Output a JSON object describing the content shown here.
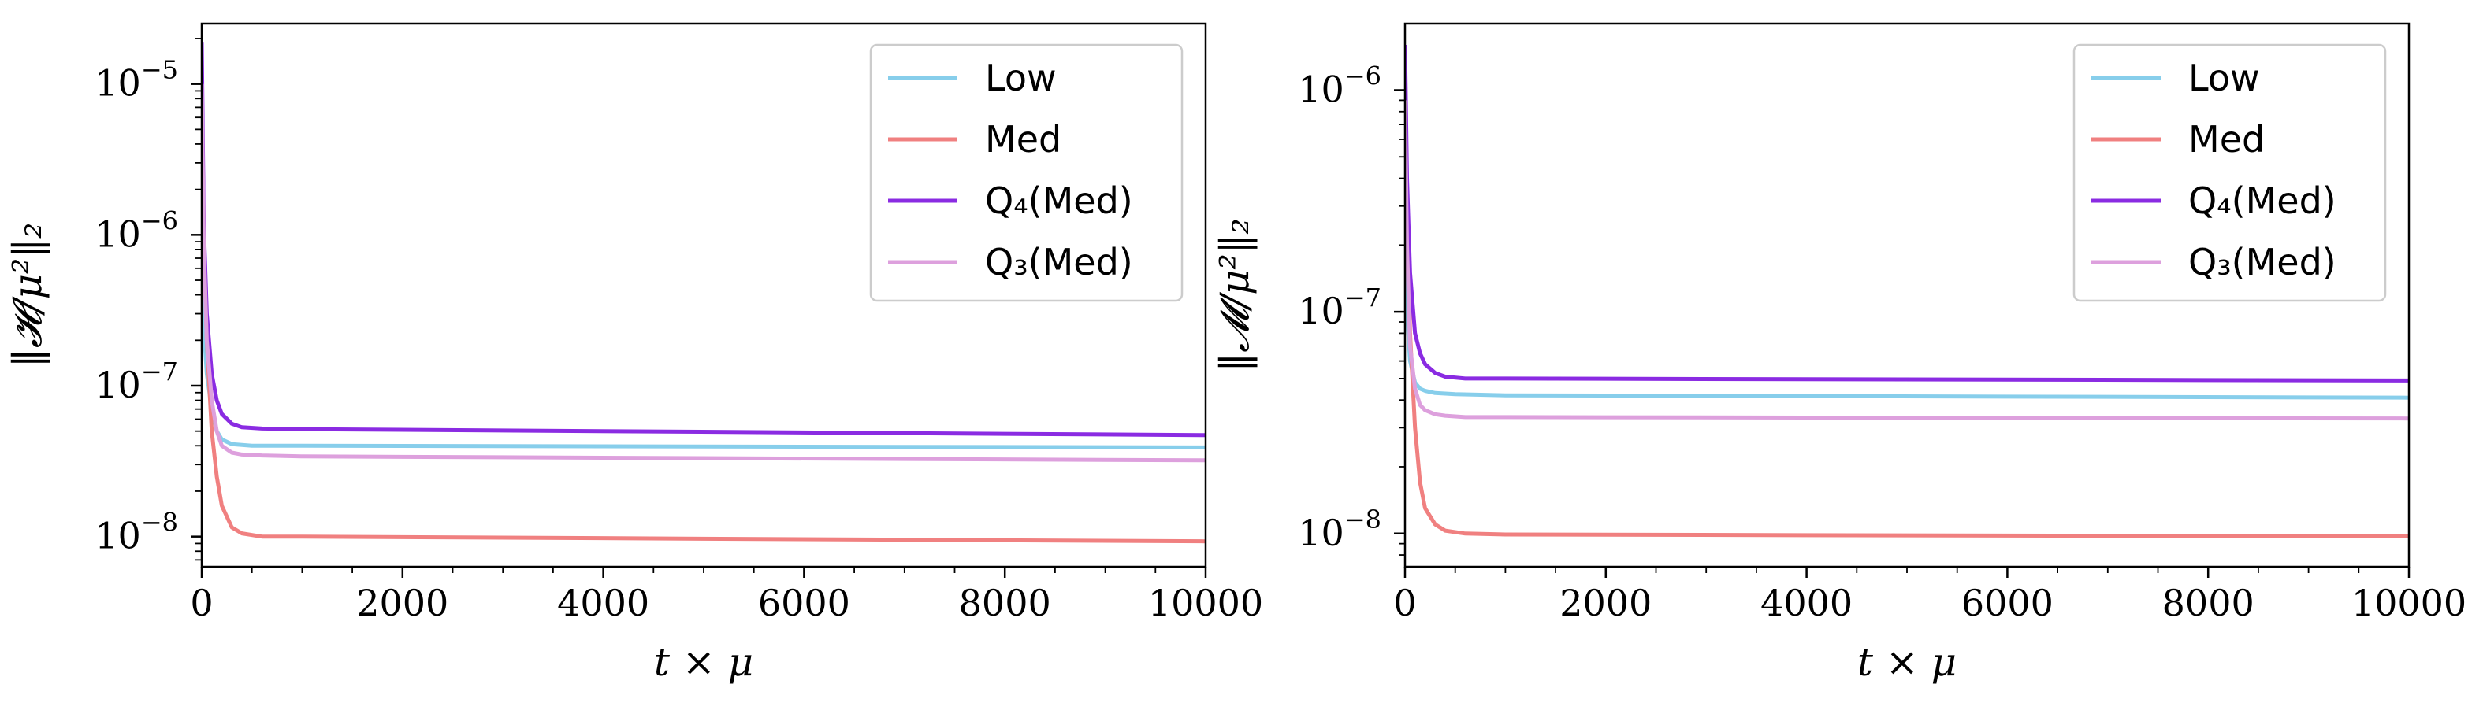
{
  "chart_data": [
    {
      "type": "line",
      "panel": "left",
      "title": "",
      "xlabel": "t × μ",
      "ylabel": "‖𝓗/μ²‖₂",
      "xlim": [
        0,
        10000
      ],
      "ylim_log10": [
        -8.2,
        -4.6
      ],
      "yscale": "log",
      "x_ticks": [
        0,
        2000,
        4000,
        6000,
        8000,
        10000
      ],
      "x_tick_labels": [
        "0",
        "2000",
        "4000",
        "6000",
        "8000",
        "10000"
      ],
      "y_tick_exponents": [
        -5,
        -6,
        -7,
        -8
      ],
      "y_tick_base": "10",
      "legend": {
        "position": "top-right"
      },
      "series": [
        {
          "name": "Low",
          "color": "#87ceeb",
          "x": [
            0,
            20,
            50,
            100,
            150,
            200,
            300,
            500,
            1000,
            10000
          ],
          "y": [
            1.6e-06,
            2.5e-07,
            1.2e-07,
            7e-08,
            5e-08,
            4.4e-08,
            4.1e-08,
            4e-08,
            4e-08,
            3.9e-08
          ]
        },
        {
          "name": "Med",
          "color": "#f08080",
          "x": [
            0,
            20,
            50,
            100,
            150,
            200,
            300,
            400,
            600,
            1000,
            10000
          ],
          "y": [
            1.2e-05,
            1e-06,
            2e-07,
            5e-08,
            2.5e-08,
            1.6e-08,
            1.15e-08,
            1.05e-08,
            1e-08,
            1e-08,
            9.3e-09
          ]
        },
        {
          "name": "Q₄(Med)",
          "color": "#8a2be2",
          "x": [
            0,
            20,
            50,
            100,
            150,
            200,
            300,
            400,
            600,
            1000,
            10000
          ],
          "y": [
            1.9e-05,
            1.2e-06,
            3e-07,
            1.2e-07,
            8e-08,
            6.5e-08,
            5.6e-08,
            5.3e-08,
            5.2e-08,
            5.15e-08,
            4.7e-08
          ]
        },
        {
          "name": "Q₃(Med)",
          "color": "#dda0dd",
          "x": [
            0,
            20,
            50,
            100,
            150,
            200,
            300,
            400,
            600,
            1000,
            10000
          ],
          "y": [
            1e-05,
            9e-07,
            2e-07,
            8e-08,
            5e-08,
            4e-08,
            3.6e-08,
            3.5e-08,
            3.45e-08,
            3.4e-08,
            3.2e-08
          ]
        }
      ]
    },
    {
      "type": "line",
      "panel": "right",
      "title": "",
      "xlabel": "t × μ",
      "ylabel": "‖𝓜/μ²‖₂",
      "xlim": [
        0,
        10000
      ],
      "ylim_log10": [
        -8.15,
        -5.7
      ],
      "yscale": "log",
      "x_ticks": [
        0,
        2000,
        4000,
        6000,
        8000,
        10000
      ],
      "x_tick_labels": [
        "0",
        "2000",
        "4000",
        "6000",
        "8000",
        "10000"
      ],
      "y_tick_exponents": [
        -6,
        -7,
        -8
      ],
      "y_tick_base": "10",
      "legend": {
        "position": "top-right"
      },
      "series": [
        {
          "name": "Low",
          "color": "#87ceeb",
          "x": [
            0,
            20,
            50,
            100,
            150,
            200,
            300,
            500,
            1000,
            10000
          ],
          "y": [
            4e-07,
            1e-07,
            6e-08,
            4.8e-08,
            4.5e-08,
            4.4e-08,
            4.3e-08,
            4.25e-08,
            4.2e-08,
            4.1e-08
          ]
        },
        {
          "name": "Med",
          "color": "#f08080",
          "x": [
            0,
            20,
            50,
            100,
            150,
            200,
            300,
            400,
            600,
            1000,
            10000
          ],
          "y": [
            1.5e-06,
            3e-07,
            8e-08,
            3e-08,
            1.7e-08,
            1.3e-08,
            1.1e-08,
            1.03e-08,
            1e-08,
            9.9e-09,
            9.7e-09
          ]
        },
        {
          "name": "Q₄(Med)",
          "color": "#8a2be2",
          "x": [
            0,
            20,
            50,
            100,
            150,
            200,
            300,
            400,
            600,
            1000,
            10000
          ],
          "y": [
            1.6e-06,
            4e-07,
            1.5e-07,
            8e-08,
            6.5e-08,
            5.8e-08,
            5.3e-08,
            5.1e-08,
            5e-08,
            5e-08,
            4.9e-08
          ]
        },
        {
          "name": "Q₃(Med)",
          "color": "#dda0dd",
          "x": [
            0,
            20,
            50,
            100,
            150,
            200,
            300,
            400,
            600,
            1000,
            10000
          ],
          "y": [
            9e-07,
            2e-07,
            7e-08,
            4.5e-08,
            3.8e-08,
            3.6e-08,
            3.45e-08,
            3.4e-08,
            3.35e-08,
            3.35e-08,
            3.3e-08
          ]
        }
      ]
    }
  ]
}
